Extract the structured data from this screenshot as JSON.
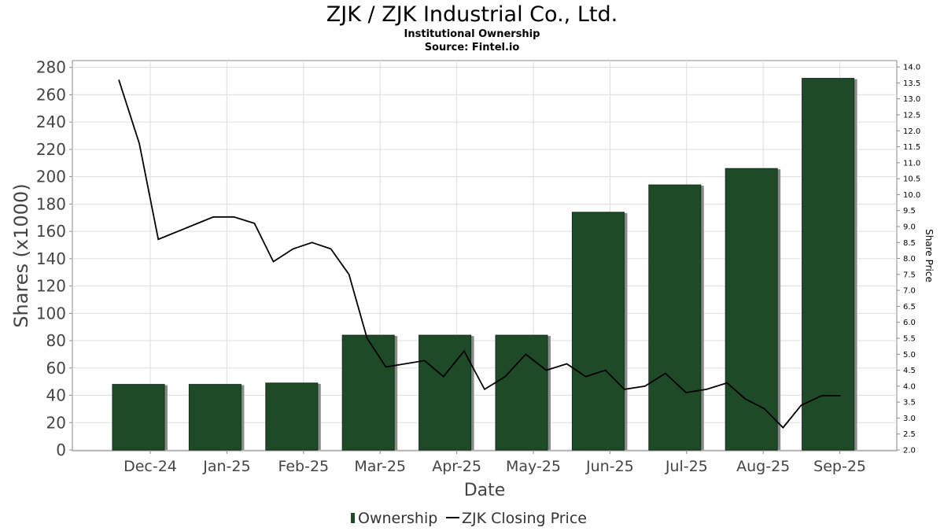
{
  "chart_data": {
    "type": "bar",
    "title": "ZJK / ZJK Industrial Co., Ltd.",
    "subtitle": "Institutional Ownership",
    "source": "Source: Fintel.io",
    "xlabel": "Date",
    "ylabel": "Shares (x1000)",
    "y2label": "Share Price",
    "categories": [
      "Dec-24",
      "Jan-25",
      "Feb-25",
      "Mar-25",
      "Apr-25",
      "May-25",
      "Jun-25",
      "Jul-25",
      "Aug-25",
      "Sep-25"
    ],
    "ylim": [
      0,
      285
    ],
    "yticks": [
      0,
      20,
      40,
      60,
      80,
      100,
      120,
      140,
      160,
      180,
      200,
      220,
      240,
      260,
      280
    ],
    "y2lim": [
      2.0,
      14.2
    ],
    "y2ticks": [
      "2.0",
      "2.5",
      "3.0",
      "3.5",
      "4.0",
      "4.5",
      "5.0",
      "5.5",
      "6.0",
      "6.5",
      "7.0",
      "7.5",
      "8.0",
      "8.5",
      "9.0",
      "9.5",
      "10.0",
      "10.5",
      "11.0",
      "11.5",
      "12.0",
      "12.5",
      "13.0",
      "13.5",
      "14.0"
    ],
    "grid": true,
    "legend_position": "bottom",
    "series": [
      {
        "name": "Ownership",
        "type": "bar",
        "color": "#1e4a28",
        "values": [
          48,
          48,
          49,
          84,
          84,
          84,
          174,
          194,
          206,
          272
        ]
      },
      {
        "name": "ZJK Closing Price",
        "type": "line",
        "color": "#000000",
        "x": [
          0.0,
          0.25,
          0.48,
          1.15,
          1.4,
          1.65,
          1.88,
          2.12,
          2.35,
          2.58,
          2.8,
          3.02,
          3.25,
          3.48,
          3.72,
          3.95,
          4.2,
          4.45,
          4.7,
          4.95,
          5.2,
          5.45,
          5.68,
          5.92,
          6.15,
          6.4,
          6.65,
          6.9,
          7.15,
          7.4,
          7.62,
          7.85,
          8.08,
          8.3,
          8.55,
          8.78
        ],
        "y": [
          13.6,
          11.6,
          8.6,
          9.3,
          9.3,
          9.1,
          7.9,
          8.3,
          8.5,
          8.3,
          7.5,
          5.5,
          4.6,
          4.7,
          4.8,
          4.3,
          5.1,
          3.9,
          4.3,
          5.0,
          4.5,
          4.7,
          4.3,
          4.5,
          3.9,
          4.0,
          4.4,
          3.8,
          3.9,
          4.1,
          3.6,
          3.3,
          2.7,
          3.4,
          3.7,
          3.7
        ]
      }
    ]
  }
}
